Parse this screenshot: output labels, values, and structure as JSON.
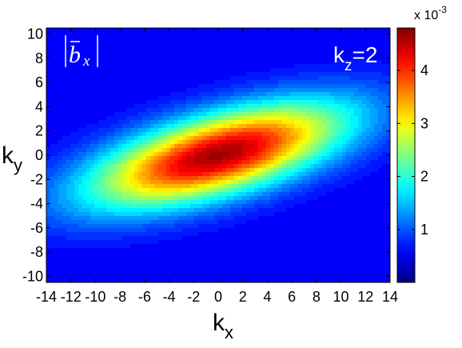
{
  "chart_data": {
    "type": "heatmap",
    "title": "",
    "panel_label": "|b̄x|",
    "annotation": {
      "main": "k",
      "sub": "z",
      "rest": "=2"
    },
    "xlabel": {
      "main": "k",
      "sub": "x"
    },
    "ylabel": {
      "main": "k",
      "sub": "y"
    },
    "xlim": [
      -14,
      14
    ],
    "ylim": [
      -10.5,
      10.5
    ],
    "xticks": [
      -14,
      -12,
      -10,
      -8,
      -6,
      -4,
      -2,
      0,
      2,
      4,
      6,
      8,
      10,
      12,
      14
    ],
    "yticks": [
      -10,
      -8,
      -6,
      -4,
      -2,
      0,
      2,
      4,
      6,
      8,
      10
    ],
    "colorbar": {
      "colormap": "jet",
      "range": [
        0.0,
        0.0048
      ],
      "ticks": [
        1,
        2,
        3,
        4
      ],
      "tick_labels": [
        "1",
        "2",
        "3",
        "4"
      ],
      "exponent_text": "x 10",
      "exponent_power": "-3"
    },
    "field_model": {
      "peak_value": 0.0047,
      "center": [
        0,
        0
      ],
      "ridge_slope": 0.28,
      "along_ridge_scale": 10.5,
      "across_ridge_scale": 3.2,
      "levels": 32
    },
    "grid": false
  }
}
